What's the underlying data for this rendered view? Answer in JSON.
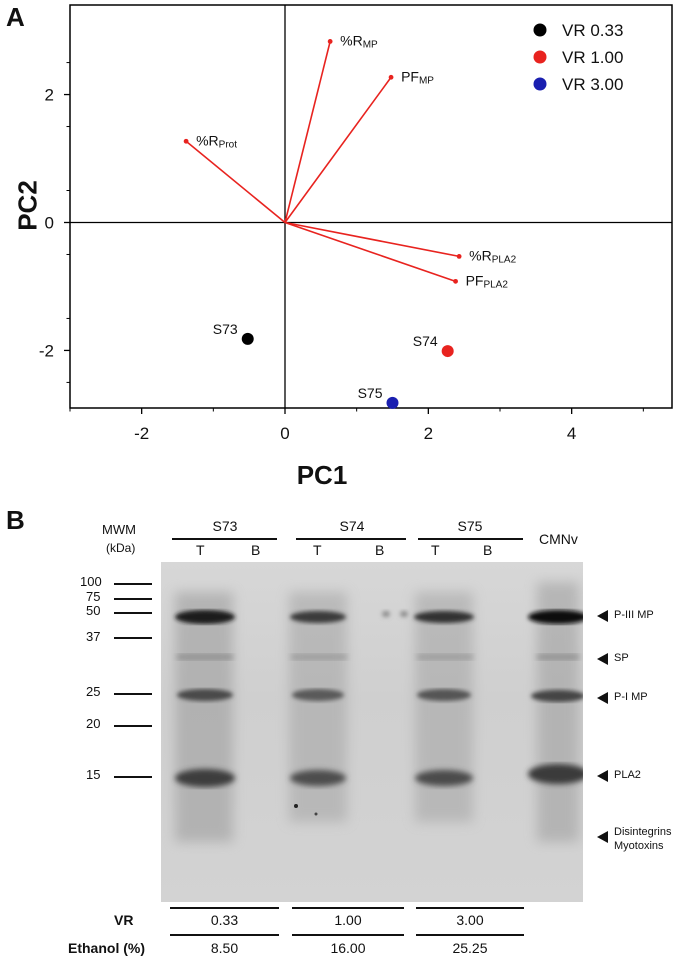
{
  "panel_a": {
    "label": "A",
    "chart_data": {
      "type": "scatter",
      "xlabel": "PC1",
      "ylabel": "PC2",
      "xlim": [
        -3.0,
        5.4
      ],
      "ylim": [
        -2.9,
        3.4
      ],
      "xticks": [
        -2,
        0,
        2,
        4
      ],
      "yticks": [
        -2,
        0,
        2
      ],
      "xtick_labels": [
        "-2",
        "0",
        "2",
        "4"
      ],
      "ytick_labels": [
        "-2",
        "0",
        "2"
      ],
      "legend_position": "top-right",
      "series": [
        {
          "name": "VR 0.33",
          "color": "#000000",
          "points": [
            {
              "x": -0.52,
              "y": -1.82,
              "label": "S73"
            }
          ]
        },
        {
          "name": "VR 1.00",
          "color": "#e8231f",
          "points": [
            {
              "x": 2.27,
              "y": -2.01,
              "label": "S74"
            }
          ]
        },
        {
          "name": "VR 3.00",
          "color": "#1a1fb0",
          "points": [
            {
              "x": 1.5,
              "y": -2.82,
              "label": "S75"
            }
          ]
        }
      ],
      "loadings": [
        {
          "label": "%R",
          "sub": "MP",
          "x": 0.63,
          "y": 2.83
        },
        {
          "label": "PF",
          "sub": "MP",
          "x": 1.48,
          "y": 2.27
        },
        {
          "label": "%R",
          "sub": "Prot",
          "x": -1.38,
          "y": 1.27
        },
        {
          "label": "%R",
          "sub": "PLA2",
          "x": 2.43,
          "y": -0.53
        },
        {
          "label": "PF",
          "sub": "PLA2",
          "x": 2.38,
          "y": -0.92
        }
      ],
      "loading_color": "#e8231f"
    }
  },
  "panel_b": {
    "label": "B",
    "mwm_label": "MWM",
    "kda_label": "(kDa)",
    "groups": [
      {
        "name": "S73",
        "lanes": [
          "T",
          "B"
        ]
      },
      {
        "name": "S74",
        "lanes": [
          "T",
          "B"
        ]
      },
      {
        "name": "S75",
        "lanes": [
          "T",
          "B"
        ]
      }
    ],
    "control_lane": "CMNv",
    "markers": [
      "100",
      "75",
      "50",
      "37",
      "25",
      "20",
      "15"
    ],
    "band_labels": [
      "P-III MP",
      "SP",
      "P-I MP",
      "PLA2",
      "Disintegrins",
      "Myotoxins"
    ],
    "table": {
      "row1_label": "VR",
      "row1_values": [
        "0.33",
        "1.00",
        "3.00"
      ],
      "row2_label": "Ethanol (%)",
      "row2_values": [
        "8.50",
        "16.00",
        "25.25"
      ]
    }
  }
}
